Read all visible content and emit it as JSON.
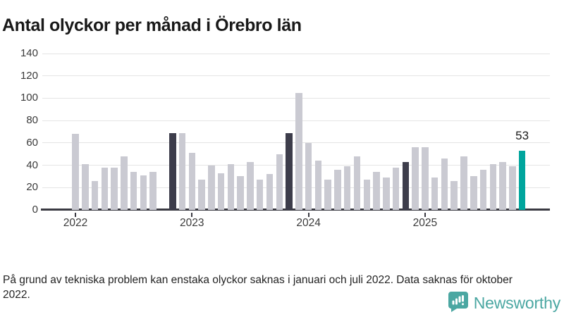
{
  "title": "Antal olyckor per månad i Örebro län",
  "footnote": "På grund av tekniska problem kan enstaka olyckor saknas i januari och juli 2022. Data saknas för oktober 2022.",
  "brand": {
    "name": "Newsworthy",
    "icon": "newsworthy-bar-chart-speech-bubble-icon",
    "teal": "#4ba7a2"
  },
  "colors": {
    "bar_normal": "#cacad2",
    "bar_dark": "#3d3d4b",
    "bar_highlight": "#00a59d",
    "axis": "#3a3a42",
    "gridline": "#e4e4e4",
    "text": "#232323"
  },
  "chart_data": {
    "type": "bar",
    "title": "Antal olyckor per månad i Örebro län",
    "xlabel": "",
    "ylabel": "",
    "ylim": [
      0,
      140
    ],
    "y_ticks": [
      0,
      20,
      40,
      60,
      80,
      100,
      120,
      140
    ],
    "grid": "horizontal",
    "legend": "none",
    "note": "dark bars mark November of each year; highlighted bar is latest month",
    "years": [
      {
        "label": "2022",
        "month_index": 0
      },
      {
        "label": "2023",
        "month_index": 12
      },
      {
        "label": "2024",
        "month_index": 24
      },
      {
        "label": "2025",
        "month_index": 36
      }
    ],
    "series": [
      {
        "name": "Antal olyckor",
        "points": [
          {
            "m": "2022-01",
            "v": 68,
            "s": "normal"
          },
          {
            "m": "2022-02",
            "v": 41,
            "s": "normal"
          },
          {
            "m": "2022-03",
            "v": 26,
            "s": "normal"
          },
          {
            "m": "2022-04",
            "v": 38,
            "s": "normal"
          },
          {
            "m": "2022-05",
            "v": 38,
            "s": "normal"
          },
          {
            "m": "2022-06",
            "v": 48,
            "s": "normal"
          },
          {
            "m": "2022-07",
            "v": 34,
            "s": "normal"
          },
          {
            "m": "2022-08",
            "v": 31,
            "s": "normal"
          },
          {
            "m": "2022-09",
            "v": 34,
            "s": "normal"
          },
          {
            "m": "2022-10",
            "v": null,
            "s": "normal"
          },
          {
            "m": "2022-11",
            "v": 69,
            "s": "dark"
          },
          {
            "m": "2022-12",
            "v": 69,
            "s": "normal"
          },
          {
            "m": "2023-01",
            "v": 51,
            "s": "normal"
          },
          {
            "m": "2023-02",
            "v": 27,
            "s": "normal"
          },
          {
            "m": "2023-03",
            "v": 40,
            "s": "normal"
          },
          {
            "m": "2023-04",
            "v": 33,
            "s": "normal"
          },
          {
            "m": "2023-05",
            "v": 41,
            "s": "normal"
          },
          {
            "m": "2023-06",
            "v": 30,
            "s": "normal"
          },
          {
            "m": "2023-07",
            "v": 43,
            "s": "normal"
          },
          {
            "m": "2023-08",
            "v": 27,
            "s": "normal"
          },
          {
            "m": "2023-09",
            "v": 32,
            "s": "normal"
          },
          {
            "m": "2023-10",
            "v": 50,
            "s": "normal"
          },
          {
            "m": "2023-11",
            "v": 69,
            "s": "dark"
          },
          {
            "m": "2023-12",
            "v": 105,
            "s": "normal"
          },
          {
            "m": "2024-01",
            "v": 60,
            "s": "normal"
          },
          {
            "m": "2024-02",
            "v": 44,
            "s": "normal"
          },
          {
            "m": "2024-03",
            "v": 27,
            "s": "normal"
          },
          {
            "m": "2024-04",
            "v": 36,
            "s": "normal"
          },
          {
            "m": "2024-05",
            "v": 39,
            "s": "normal"
          },
          {
            "m": "2024-06",
            "v": 48,
            "s": "normal"
          },
          {
            "m": "2024-07",
            "v": 27,
            "s": "normal"
          },
          {
            "m": "2024-08",
            "v": 34,
            "s": "normal"
          },
          {
            "m": "2024-09",
            "v": 29,
            "s": "normal"
          },
          {
            "m": "2024-10",
            "v": 38,
            "s": "normal"
          },
          {
            "m": "2024-11",
            "v": 43,
            "s": "dark"
          },
          {
            "m": "2024-12",
            "v": 56,
            "s": "normal"
          },
          {
            "m": "2025-01",
            "v": 56,
            "s": "normal"
          },
          {
            "m": "2025-02",
            "v": 29,
            "s": "normal"
          },
          {
            "m": "2025-03",
            "v": 46,
            "s": "normal"
          },
          {
            "m": "2025-04",
            "v": 26,
            "s": "normal"
          },
          {
            "m": "2025-05",
            "v": 48,
            "s": "normal"
          },
          {
            "m": "2025-06",
            "v": 30,
            "s": "normal"
          },
          {
            "m": "2025-07",
            "v": 36,
            "s": "normal"
          },
          {
            "m": "2025-08",
            "v": 41,
            "s": "normal"
          },
          {
            "m": "2025-09",
            "v": 43,
            "s": "normal"
          },
          {
            "m": "2025-10",
            "v": 39,
            "s": "normal"
          },
          {
            "m": "2025-11",
            "v": 53,
            "s": "highlight",
            "label": "53"
          }
        ]
      }
    ]
  }
}
